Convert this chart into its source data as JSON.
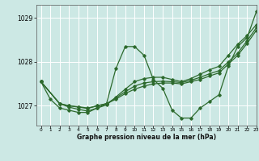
{
  "title": "Graphe pression niveau de la mer (hPa)",
  "bg_color": "#cce8e4",
  "grid_color": "#ffffff",
  "line_color": "#2d6a2d",
  "xlim": [
    -0.5,
    23
  ],
  "ylim": [
    1026.55,
    1029.3
  ],
  "yticks": [
    1027,
    1028,
    1029
  ],
  "xticks": [
    0,
    1,
    2,
    3,
    4,
    5,
    6,
    7,
    8,
    9,
    10,
    11,
    12,
    13,
    14,
    15,
    16,
    17,
    18,
    19,
    20,
    21,
    22,
    23
  ],
  "series": [
    {
      "x": [
        0,
        1,
        2,
        3,
        4,
        5,
        6,
        7,
        8,
        9,
        10,
        11,
        12,
        13,
        14,
        15,
        16,
        17,
        18,
        19,
        20,
        21,
        22,
        23
      ],
      "y": [
        1027.55,
        1027.15,
        1026.95,
        1026.9,
        1026.85,
        1026.85,
        1026.95,
        1027.05,
        1027.85,
        1028.35,
        1028.35,
        1028.15,
        1027.6,
        1027.4,
        1026.9,
        1026.72,
        1026.72,
        1026.95,
        1027.1,
        1027.25,
        1027.9,
        1028.35,
        1028.55,
        1029.15
      ]
    },
    {
      "x": [
        0,
        2,
        3,
        4,
        5,
        6,
        7,
        8,
        9,
        10,
        11,
        12,
        13,
        14,
        15,
        16,
        17,
        18,
        19,
        20,
        21,
        22,
        23
      ],
      "y": [
        1027.55,
        1027.05,
        1027.0,
        1026.98,
        1026.95,
        1027.0,
        1027.05,
        1027.15,
        1027.28,
        1027.38,
        1027.45,
        1027.5,
        1027.52,
        1027.52,
        1027.5,
        1027.55,
        1027.6,
        1027.68,
        1027.75,
        1027.95,
        1028.15,
        1028.42,
        1028.72
      ]
    },
    {
      "x": [
        0,
        2,
        3,
        4,
        5,
        6,
        7,
        8,
        9,
        10,
        11,
        12,
        13,
        14,
        15,
        16,
        17,
        18,
        19,
        20,
        21,
        22,
        23
      ],
      "y": [
        1027.55,
        1027.05,
        1027.0,
        1026.97,
        1026.94,
        1027.0,
        1027.05,
        1027.18,
        1027.32,
        1027.45,
        1027.52,
        1027.55,
        1027.56,
        1027.55,
        1027.53,
        1027.58,
        1027.65,
        1027.73,
        1027.8,
        1028.0,
        1028.2,
        1028.48,
        1028.78
      ]
    },
    {
      "x": [
        0,
        2,
        3,
        4,
        5,
        6,
        7,
        8,
        9,
        10,
        11,
        12,
        13,
        14,
        15,
        16,
        17,
        18,
        19,
        20,
        21,
        22,
        23
      ],
      "y": [
        1027.55,
        1027.05,
        1026.97,
        1026.92,
        1026.88,
        1026.95,
        1027.02,
        1027.2,
        1027.38,
        1027.55,
        1027.62,
        1027.65,
        1027.65,
        1027.6,
        1027.55,
        1027.62,
        1027.72,
        1027.82,
        1027.9,
        1028.15,
        1028.4,
        1028.6,
        1028.85
      ]
    }
  ]
}
